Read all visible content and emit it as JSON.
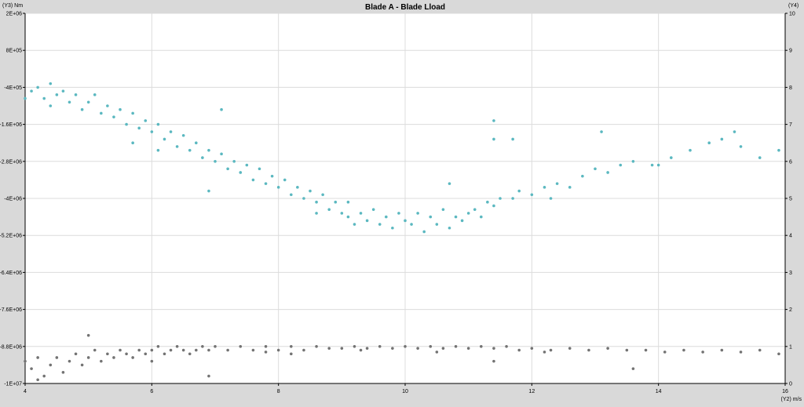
{
  "chart_data": {
    "type": "scatter",
    "title": "Blade A - Blade Lload",
    "left_axis_label": "(Y3) Nm",
    "right_axis_label": "(Y4)",
    "x_axis_label": "(Y2) m/s",
    "xlim": [
      4,
      16
    ],
    "x_ticks": [
      "4",
      "6",
      "8",
      "10",
      "12",
      "14",
      "16"
    ],
    "x_tick_values": [
      4,
      6,
      8,
      10,
      12,
      14,
      16
    ],
    "left_ylim": [
      -10000000,
      2000000
    ],
    "left_ticks": [
      "2E+06",
      "8E+05",
      "-4E+05",
      "-1.6E+06",
      "-2.8E+06",
      "-4E+06",
      "-5.2E+06",
      "-6.4E+06",
      "-7.6E+06",
      "-8.8E+06",
      "-1E+07"
    ],
    "right_ylim": [
      0,
      10
    ],
    "right_ticks": [
      "10",
      "9",
      "8",
      "7",
      "6",
      "5",
      "4",
      "3",
      "2",
      "1",
      "0"
    ],
    "grid": true,
    "series": [
      {
        "color": "#5bb8c0",
        "axis": "right",
        "points": [
          [
            4.0,
            7.7
          ],
          [
            4.1,
            7.9
          ],
          [
            4.2,
            8.0
          ],
          [
            4.3,
            7.7
          ],
          [
            4.4,
            8.1
          ],
          [
            4.5,
            7.8
          ],
          [
            4.6,
            7.9
          ],
          [
            4.7,
            7.6
          ],
          [
            4.8,
            7.8
          ],
          [
            4.9,
            7.4
          ],
          [
            5.0,
            7.6
          ],
          [
            5.1,
            7.8
          ],
          [
            5.2,
            7.3
          ],
          [
            5.3,
            7.5
          ],
          [
            5.4,
            7.2
          ],
          [
            5.5,
            7.4
          ],
          [
            5.6,
            7.0
          ],
          [
            5.7,
            7.3
          ],
          [
            5.8,
            6.9
          ],
          [
            5.9,
            7.1
          ],
          [
            6.0,
            6.8
          ],
          [
            6.1,
            7.0
          ],
          [
            6.2,
            6.6
          ],
          [
            6.3,
            6.8
          ],
          [
            6.4,
            6.4
          ],
          [
            6.5,
            6.7
          ],
          [
            6.6,
            6.3
          ],
          [
            6.7,
            6.5
          ],
          [
            6.8,
            6.1
          ],
          [
            6.9,
            6.3
          ],
          [
            7.0,
            6.0
          ],
          [
            7.1,
            6.2
          ],
          [
            7.2,
            5.8
          ],
          [
            7.3,
            6.0
          ],
          [
            7.4,
            5.7
          ],
          [
            7.5,
            5.9
          ],
          [
            7.6,
            5.5
          ],
          [
            7.7,
            5.8
          ],
          [
            7.8,
            5.4
          ],
          [
            7.9,
            5.6
          ],
          [
            8.0,
            5.3
          ],
          [
            8.1,
            5.5
          ],
          [
            8.2,
            5.1
          ],
          [
            8.3,
            5.3
          ],
          [
            8.4,
            5.0
          ],
          [
            8.5,
            5.2
          ],
          [
            8.6,
            4.9
          ],
          [
            8.7,
            5.1
          ],
          [
            8.8,
            4.7
          ],
          [
            8.9,
            4.9
          ],
          [
            9.0,
            4.6
          ],
          [
            9.1,
            4.5
          ],
          [
            9.2,
            4.3
          ],
          [
            9.3,
            4.6
          ],
          [
            9.4,
            4.4
          ],
          [
            9.5,
            4.7
          ],
          [
            9.6,
            4.3
          ],
          [
            9.7,
            4.5
          ],
          [
            9.8,
            4.2
          ],
          [
            9.9,
            4.6
          ],
          [
            10.0,
            4.4
          ],
          [
            10.1,
            4.3
          ],
          [
            10.2,
            4.6
          ],
          [
            10.3,
            4.1
          ],
          [
            10.4,
            4.5
          ],
          [
            10.5,
            4.3
          ],
          [
            10.6,
            4.7
          ],
          [
            10.7,
            4.2
          ],
          [
            10.8,
            4.5
          ],
          [
            10.9,
            4.4
          ],
          [
            11.0,
            4.6
          ],
          [
            11.1,
            4.7
          ],
          [
            11.2,
            4.5
          ],
          [
            11.3,
            4.9
          ],
          [
            11.4,
            4.8
          ],
          [
            11.5,
            5.0
          ],
          [
            11.7,
            5.0
          ],
          [
            11.8,
            5.2
          ],
          [
            12.0,
            5.1
          ],
          [
            12.2,
            5.3
          ],
          [
            12.4,
            5.4
          ],
          [
            12.6,
            5.3
          ],
          [
            12.8,
            5.6
          ],
          [
            13.0,
            5.8
          ],
          [
            13.2,
            5.7
          ],
          [
            13.4,
            5.9
          ],
          [
            13.6,
            6.0
          ],
          [
            13.9,
            5.9
          ],
          [
            14.2,
            6.1
          ],
          [
            14.5,
            6.3
          ],
          [
            14.8,
            6.5
          ],
          [
            15.0,
            6.6
          ],
          [
            15.3,
            6.4
          ],
          [
            15.6,
            6.1
          ],
          [
            15.9,
            6.3
          ],
          [
            11.4,
            7.1
          ],
          [
            11.4,
            6.6
          ],
          [
            11.7,
            6.6
          ],
          [
            13.1,
            6.8
          ],
          [
            7.1,
            7.4
          ],
          [
            6.9,
            5.2
          ],
          [
            5.7,
            6.5
          ],
          [
            15.2,
            6.8
          ],
          [
            9.1,
            4.9
          ],
          [
            8.6,
            4.6
          ],
          [
            10.7,
            5.4
          ],
          [
            12.3,
            5.0
          ],
          [
            14.0,
            5.9
          ],
          [
            4.4,
            7.5
          ],
          [
            6.1,
            6.3
          ]
        ]
      },
      {
        "color": "#737373",
        "axis": "right",
        "points": [
          [
            4.0,
            0.6
          ],
          [
            4.1,
            0.4
          ],
          [
            4.2,
            0.7
          ],
          [
            4.3,
            0.2
          ],
          [
            4.4,
            0.5
          ],
          [
            4.5,
            0.7
          ],
          [
            4.6,
            0.3
          ],
          [
            4.7,
            0.6
          ],
          [
            4.8,
            0.8
          ],
          [
            4.9,
            0.5
          ],
          [
            5.0,
            0.7
          ],
          [
            5.1,
            0.9
          ],
          [
            5.2,
            0.6
          ],
          [
            5.3,
            0.8
          ],
          [
            5.4,
            0.7
          ],
          [
            5.5,
            0.9
          ],
          [
            5.6,
            0.8
          ],
          [
            5.7,
            0.7
          ],
          [
            5.8,
            0.9
          ],
          [
            5.9,
            0.8
          ],
          [
            6.0,
            0.9
          ],
          [
            6.1,
            1.0
          ],
          [
            6.2,
            0.8
          ],
          [
            6.3,
            0.9
          ],
          [
            6.4,
            1.0
          ],
          [
            6.5,
            0.9
          ],
          [
            6.6,
            0.8
          ],
          [
            6.7,
            0.9
          ],
          [
            6.8,
            1.0
          ],
          [
            6.9,
            0.9
          ],
          [
            7.0,
            1.0
          ],
          [
            7.2,
            0.9
          ],
          [
            7.4,
            1.0
          ],
          [
            7.6,
            0.9
          ],
          [
            7.8,
            1.0
          ],
          [
            8.0,
            0.9
          ],
          [
            8.2,
            1.0
          ],
          [
            8.4,
            0.9
          ],
          [
            8.6,
            1.0
          ],
          [
            8.8,
            0.95
          ],
          [
            9.0,
            0.95
          ],
          [
            9.2,
            1.0
          ],
          [
            9.4,
            0.95
          ],
          [
            9.6,
            1.0
          ],
          [
            9.8,
            0.95
          ],
          [
            10.0,
            1.0
          ],
          [
            10.2,
            0.95
          ],
          [
            10.4,
            1.0
          ],
          [
            10.6,
            0.95
          ],
          [
            10.8,
            1.0
          ],
          [
            11.0,
            0.95
          ],
          [
            11.2,
            1.0
          ],
          [
            11.4,
            0.95
          ],
          [
            11.6,
            1.0
          ],
          [
            11.8,
            0.9
          ],
          [
            12.0,
            0.95
          ],
          [
            12.3,
            0.9
          ],
          [
            12.6,
            0.95
          ],
          [
            12.9,
            0.9
          ],
          [
            13.2,
            0.95
          ],
          [
            13.5,
            0.9
          ],
          [
            13.8,
            0.9
          ],
          [
            14.1,
            0.85
          ],
          [
            14.4,
            0.9
          ],
          [
            14.7,
            0.85
          ],
          [
            15.0,
            0.9
          ],
          [
            15.3,
            0.85
          ],
          [
            15.6,
            0.9
          ],
          [
            15.9,
            0.8
          ],
          [
            4.2,
            0.1
          ],
          [
            6.0,
            0.6
          ],
          [
            8.2,
            0.8
          ],
          [
            11.4,
            0.6
          ],
          [
            13.6,
            0.4
          ],
          [
            6.9,
            0.2
          ],
          [
            5.0,
            1.3
          ],
          [
            9.3,
            0.9
          ],
          [
            10.5,
            0.85
          ],
          [
            12.2,
            0.85
          ],
          [
            7.8,
            0.85
          ]
        ]
      }
    ]
  }
}
